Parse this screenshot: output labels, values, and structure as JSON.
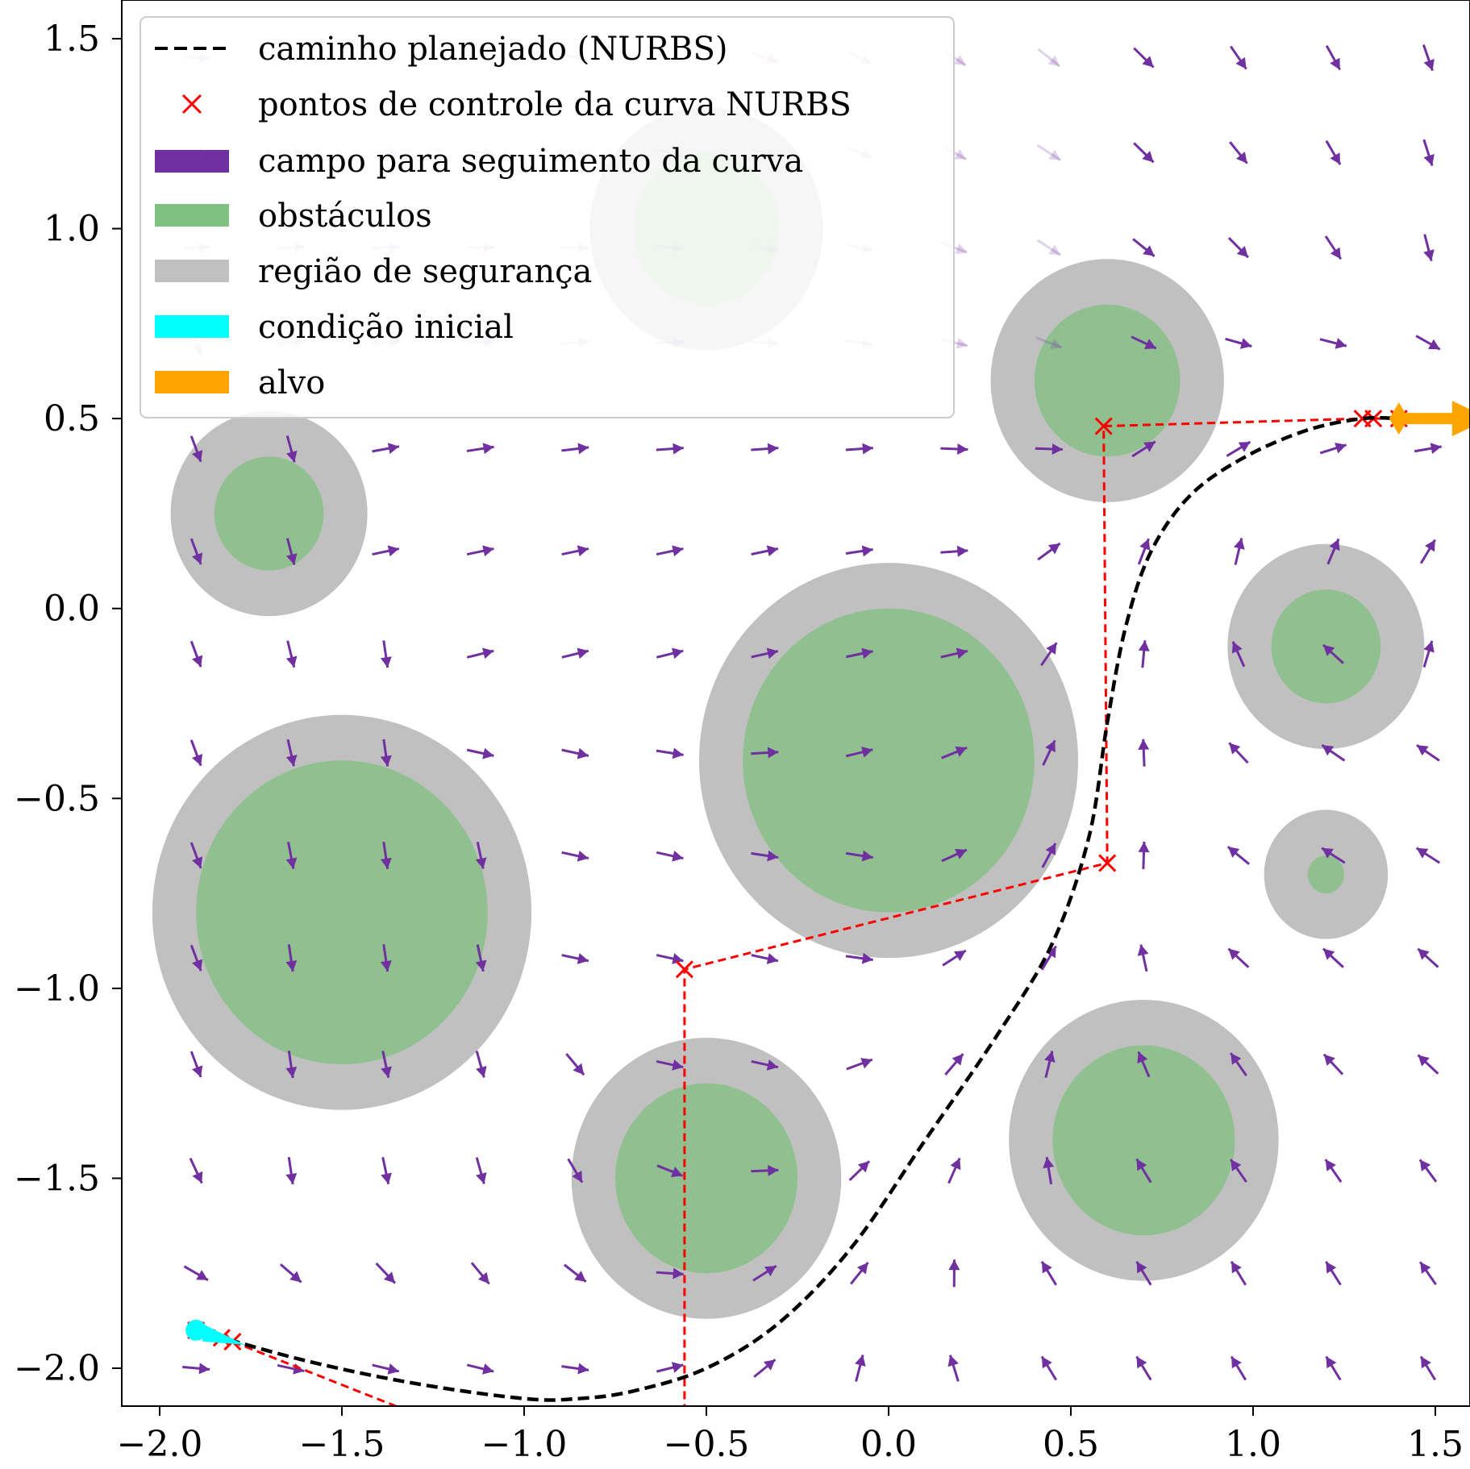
{
  "chart_data": {
    "type": "scatter",
    "xlim": [
      -2.1,
      1.6
    ],
    "ylim": [
      -2.1,
      1.6
    ],
    "x_ticks": [
      -2.0,
      -1.5,
      -1.0,
      -0.5,
      0.0,
      0.5,
      1.0,
      1.5
    ],
    "x_tick_labels": [
      "−2.0",
      "−1.5",
      "−1.0",
      "−0.5",
      "0.0",
      "0.5",
      "1.0",
      "1.5"
    ],
    "y_ticks": [
      1.5,
      1.0,
      0.5,
      0.0,
      -0.5,
      -1.0,
      -1.5,
      -2.0
    ],
    "y_tick_labels": [
      "1.5",
      "1.0",
      "0.5",
      "0.0",
      "−0.5",
      "−1.0",
      "−1.5",
      "−2.0"
    ],
    "grid": false,
    "legend": {
      "position": "top-left",
      "entries": [
        {
          "label": "caminho planejado (NURBS)",
          "kind": "dashed-line",
          "color": "#000000"
        },
        {
          "label": "pontos de controle da curva NURBS",
          "kind": "x-marker",
          "color": "#ff0000"
        },
        {
          "label": "campo para seguimento da curva",
          "kind": "patch",
          "color": "#7030a0"
        },
        {
          "label": "obstáculos",
          "kind": "patch",
          "color": "#80c080"
        },
        {
          "label": "região de segurança",
          "kind": "patch",
          "color": "#c0c0c0"
        },
        {
          "label": "condição inicial",
          "kind": "patch",
          "color": "#00ffff"
        },
        {
          "label": "alvo",
          "kind": "patch",
          "color": "#ffa500"
        }
      ]
    },
    "colors": {
      "path": "#000000",
      "control": "#ff0000",
      "field": "#7030a0",
      "obstacle": "#80c080",
      "safety": "#c0c0c0",
      "initial": "#00ffff",
      "target": "#ffa500"
    },
    "obstacles": [
      {
        "cx": -1.7,
        "cy": 0.25,
        "r": 0.15,
        "safety_r": 0.27
      },
      {
        "cx": -0.5,
        "cy": 1.0,
        "r": 0.2,
        "safety_r": 0.32
      },
      {
        "cx": 0.6,
        "cy": 0.6,
        "r": 0.2,
        "safety_r": 0.32
      },
      {
        "cx": 1.2,
        "cy": -0.1,
        "r": 0.15,
        "safety_r": 0.27
      },
      {
        "cx": 0.0,
        "cy": -0.4,
        "r": 0.4,
        "safety_r": 0.52
      },
      {
        "cx": -1.5,
        "cy": -0.8,
        "r": 0.4,
        "safety_r": 0.52
      },
      {
        "cx": 1.2,
        "cy": -0.7,
        "r": 0.05,
        "safety_r": 0.17
      },
      {
        "cx": -0.5,
        "cy": -1.5,
        "r": 0.25,
        "safety_r": 0.37
      },
      {
        "cx": 0.7,
        "cy": -1.4,
        "r": 0.25,
        "safety_r": 0.37
      }
    ],
    "control_points": [
      {
        "x": -1.9,
        "y": -1.9
      },
      {
        "x": -1.83,
        "y": -1.92
      },
      {
        "x": -1.8,
        "y": -1.93
      },
      {
        "x": -0.56,
        "y": -2.4
      },
      {
        "x": -0.56,
        "y": -0.95
      },
      {
        "x": 0.6,
        "y": -0.67
      },
      {
        "x": 0.59,
        "y": 0.48
      },
      {
        "x": 1.3,
        "y": 0.5
      },
      {
        "x": 1.33,
        "y": 0.5
      },
      {
        "x": 1.4,
        "y": 0.5
      }
    ],
    "path": [
      {
        "x": -1.9,
        "y": -1.9
      },
      {
        "x": -1.6,
        "y": -1.98
      },
      {
        "x": -1.3,
        "y": -2.04
      },
      {
        "x": -1.0,
        "y": -2.08
      },
      {
        "x": -0.85,
        "y": -2.08
      },
      {
        "x": -0.7,
        "y": -2.06
      },
      {
        "x": -0.5,
        "y": -2.0
      },
      {
        "x": -0.3,
        "y": -1.88
      },
      {
        "x": -0.1,
        "y": -1.68
      },
      {
        "x": 0.1,
        "y": -1.4
      },
      {
        "x": 0.3,
        "y": -1.12
      },
      {
        "x": 0.45,
        "y": -0.88
      },
      {
        "x": 0.55,
        "y": -0.6
      },
      {
        "x": 0.6,
        "y": -0.3
      },
      {
        "x": 0.65,
        "y": -0.05
      },
      {
        "x": 0.72,
        "y": 0.15
      },
      {
        "x": 0.83,
        "y": 0.3
      },
      {
        "x": 0.98,
        "y": 0.4
      },
      {
        "x": 1.15,
        "y": 0.47
      },
      {
        "x": 1.3,
        "y": 0.5
      },
      {
        "x": 1.4,
        "y": 0.5
      }
    ],
    "initial_condition": {
      "x": -1.9,
      "y": -1.9
    },
    "target": {
      "x": 1.4,
      "y": 0.5
    },
    "target_direction": {
      "dx": 1,
      "dy": 0
    },
    "field_grid": {
      "x": [
        -1.9,
        -1.64,
        -1.38,
        -1.12,
        -0.86,
        -0.6,
        -0.34,
        -0.08,
        0.18,
        0.44,
        0.7,
        0.96,
        1.22,
        1.48
      ],
      "y": [
        1.45,
        1.2,
        0.95,
        0.7,
        0.42,
        0.15,
        -0.12,
        -0.38,
        -0.65,
        -0.92,
        -1.2,
        -1.48,
        -1.75,
        -2.0
      ]
    }
  }
}
